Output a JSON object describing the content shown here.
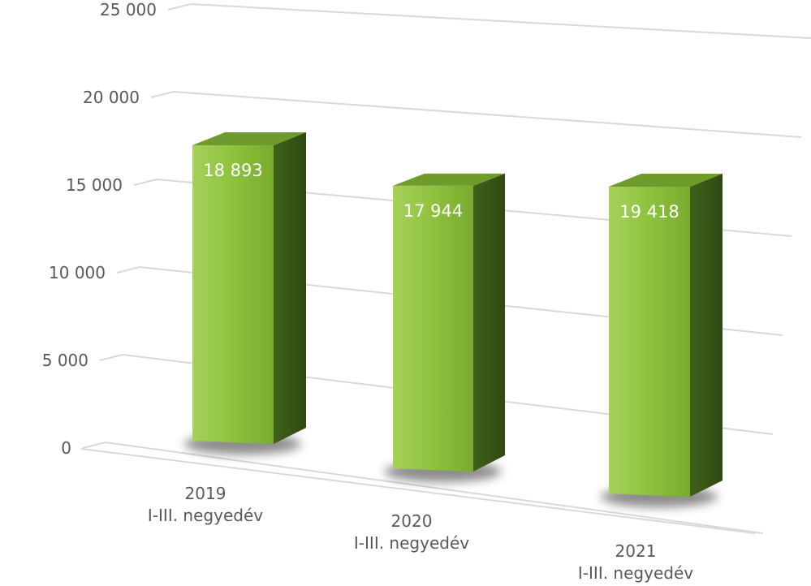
{
  "chart_data": {
    "type": "bar",
    "style": "3d-column",
    "categories": [
      [
        "2019",
        "I-III. negyedév"
      ],
      [
        "2020",
        "I-III. negyedév"
      ],
      [
        "2021",
        "I-III. negyedév"
      ]
    ],
    "values": [
      18893,
      17944,
      19418
    ],
    "value_labels": [
      "18 893",
      "17 944",
      "19 418"
    ],
    "yticks": [
      0,
      5000,
      10000,
      15000,
      20000,
      25000
    ],
    "ytick_labels": [
      "0",
      "5 000",
      "10 000",
      "15 000",
      "20 000",
      "25 000"
    ],
    "ylim": [
      0,
      25000
    ],
    "grid": true,
    "colors": {
      "front": "#8dbf3c",
      "side": "#3a5a17",
      "top": "#6f9b2d",
      "grid": "#d9d9d9",
      "text": "#595959",
      "label": "#ffffff"
    }
  }
}
